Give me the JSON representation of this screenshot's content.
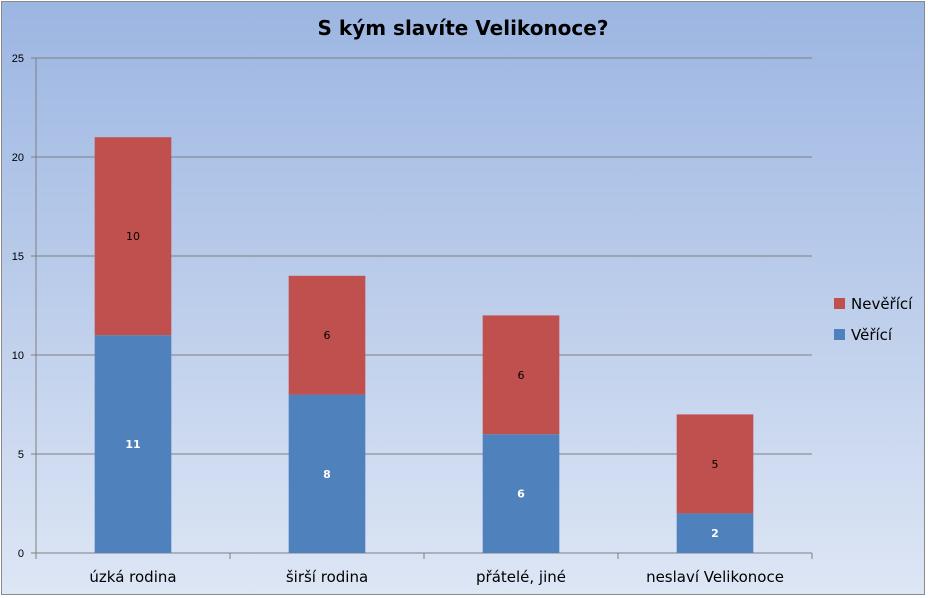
{
  "chart_data": {
    "type": "bar",
    "stacked": true,
    "title": "S kým slavíte Velikonoce?",
    "categories": [
      "úzká rodina",
      "širší rodina",
      "přátelé, jiné",
      "neslaví Velikonoce"
    ],
    "series": [
      {
        "name": "Věřící",
        "values": [
          11,
          8,
          6,
          2
        ],
        "color": "#4f81bd",
        "label_color": "#ffffff"
      },
      {
        "name": "Nevěřící",
        "values": [
          10,
          6,
          6,
          5
        ],
        "color": "#c0504d",
        "label_color": "#000000"
      }
    ],
    "ylim": [
      0,
      25
    ],
    "yticks": [
      0,
      5,
      10,
      15,
      20,
      25
    ],
    "grid": true,
    "legend": "right"
  }
}
